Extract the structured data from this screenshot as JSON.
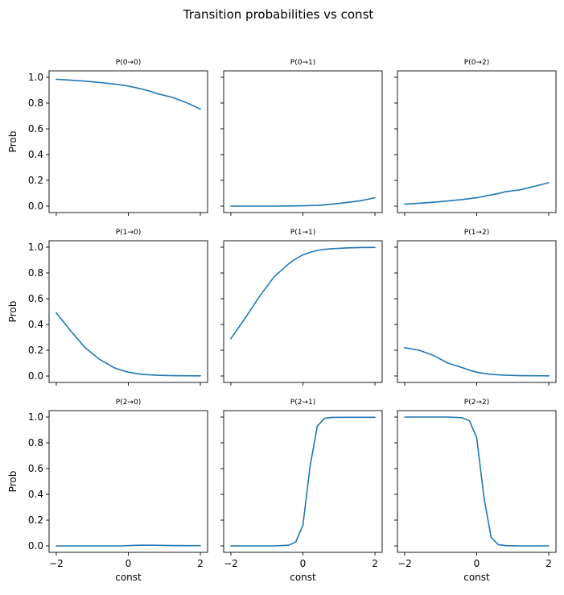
{
  "figure": {
    "title": "Transition probabilities vs const",
    "line_color": "#1f77b4"
  },
  "chart_data": {
    "type": "line",
    "title": "Transition probabilities vs const",
    "xlabel": "const",
    "ylabel": "Prob",
    "xlim": [
      -2.2,
      2.2
    ],
    "ylim": [
      -0.05,
      1.05
    ],
    "xticks": [
      -2,
      0,
      2
    ],
    "xtick_labels": [
      "−2",
      "0",
      "2"
    ],
    "yticks": [
      0.0,
      0.2,
      0.4,
      0.6,
      0.8,
      1.0
    ],
    "ytick_labels": [
      "0.0",
      "0.2",
      "0.4",
      "0.6",
      "0.8",
      "1.0"
    ],
    "x": [
      -2.0,
      -1.6,
      -1.2,
      -0.8,
      -0.4,
      -0.2,
      0.0,
      0.2,
      0.4,
      0.6,
      0.8,
      1.2,
      1.6,
      2.0
    ],
    "panels": [
      {
        "title": "P(0→0)",
        "values": [
          0.985,
          0.978,
          0.97,
          0.96,
          0.948,
          0.94,
          0.932,
          0.92,
          0.907,
          0.892,
          0.873,
          0.846,
          0.805,
          0.753
        ]
      },
      {
        "title": "P(0→1)",
        "values": [
          0.0,
          0.0,
          0.0,
          0.0,
          0.001,
          0.002,
          0.003,
          0.004,
          0.006,
          0.01,
          0.015,
          0.028,
          0.042,
          0.065
        ]
      },
      {
        "title": "P(0→2)",
        "values": [
          0.015,
          0.022,
          0.03,
          0.04,
          0.051,
          0.058,
          0.065,
          0.076,
          0.087,
          0.098,
          0.112,
          0.126,
          0.153,
          0.182
        ]
      },
      {
        "title": "P(1→0)",
        "values": [
          0.49,
          0.35,
          0.22,
          0.13,
          0.065,
          0.045,
          0.03,
          0.02,
          0.013,
          0.009,
          0.006,
          0.003,
          0.002,
          0.001
        ]
      },
      {
        "title": "P(1→1)",
        "values": [
          0.29,
          0.45,
          0.62,
          0.77,
          0.87,
          0.91,
          0.94,
          0.96,
          0.975,
          0.983,
          0.988,
          0.994,
          0.997,
          0.998
        ]
      },
      {
        "title": "P(1→2)",
        "values": [
          0.22,
          0.2,
          0.16,
          0.1,
          0.065,
          0.045,
          0.03,
          0.02,
          0.013,
          0.009,
          0.006,
          0.003,
          0.002,
          0.001
        ]
      },
      {
        "title": "P(2→0)",
        "values": [
          0.0,
          0.0,
          0.0,
          0.0,
          0.0,
          0.0,
          0.002,
          0.004,
          0.005,
          0.005,
          0.004,
          0.003,
          0.002,
          0.002
        ]
      },
      {
        "title": "P(2→1)",
        "values": [
          0.0,
          0.0,
          0.0,
          0.0,
          0.005,
          0.03,
          0.16,
          0.62,
          0.93,
          0.99,
          0.997,
          0.998,
          0.998,
          0.998
        ]
      },
      {
        "title": "P(2→2)",
        "values": [
          1.0,
          1.0,
          1.0,
          1.0,
          0.995,
          0.97,
          0.84,
          0.38,
          0.065,
          0.01,
          0.002,
          0.0,
          0.0,
          0.0
        ]
      }
    ]
  }
}
